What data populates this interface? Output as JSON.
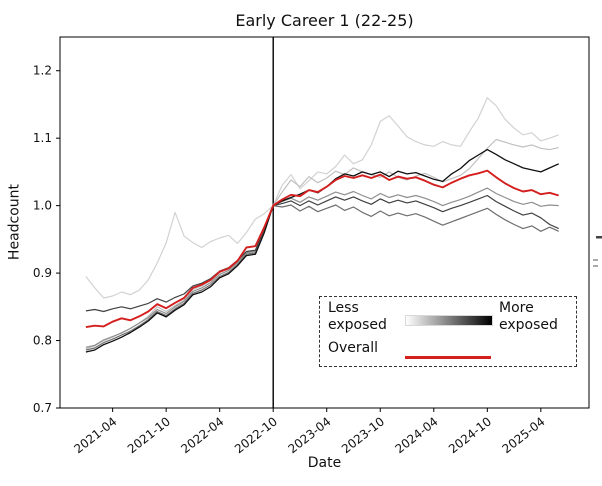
{
  "title": "Early Career 1 (22-25)",
  "axes": {
    "xlabel": "Date",
    "ylabel": "Headcount",
    "ytick_labels": [
      "0.7",
      "0.8",
      "0.9",
      "1.0",
      "1.1",
      "1.2"
    ],
    "xtick_labels": [
      "2021-04",
      "2021-10",
      "2022-04",
      "2022-10",
      "2023-04",
      "2023-10",
      "2024-04",
      "2024-10",
      "2025-04"
    ]
  },
  "legend": {
    "less_label": "Less exposed",
    "more_label": "More exposed",
    "overall_label": "Overall",
    "gradient_from": "#ffffff",
    "gradient_to": "#000000",
    "overall_color": "#d41f1f"
  },
  "chart_data": {
    "type": "line",
    "title": "Early Career 1 (22-25)",
    "xlabel": "Date",
    "ylabel": "Headcount",
    "ylim": [
      0.7,
      1.25
    ],
    "grid": false,
    "legend_position": "lower right",
    "normalization_note": "All series equal 1.0 at 2022-10, marked by a vertical black line",
    "vline": {
      "x": "2022-10",
      "color": "#000000"
    },
    "yticks": [
      0.7,
      0.8,
      0.9,
      1.0,
      1.1,
      1.2
    ],
    "xticks": [
      "2021-04",
      "2021-10",
      "2022-04",
      "2022-10",
      "2023-04",
      "2023-10",
      "2024-04",
      "2024-10",
      "2025-04"
    ],
    "x": [
      "2021-01",
      "2021-02",
      "2021-03",
      "2021-04",
      "2021-05",
      "2021-06",
      "2021-07",
      "2021-08",
      "2021-09",
      "2021-10",
      "2021-11",
      "2021-12",
      "2022-01",
      "2022-02",
      "2022-03",
      "2022-04",
      "2022-05",
      "2022-06",
      "2022-07",
      "2022-08",
      "2022-09",
      "2022-10",
      "2022-11",
      "2022-12",
      "2023-01",
      "2023-02",
      "2023-03",
      "2023-04",
      "2023-05",
      "2023-06",
      "2023-07",
      "2023-08",
      "2023-09",
      "2023-10",
      "2023-11",
      "2023-12",
      "2024-01",
      "2024-02",
      "2024-03",
      "2024-04",
      "2024-05",
      "2024-06",
      "2024-07",
      "2024-08",
      "2024-09",
      "2024-10",
      "2024-11",
      "2024-12",
      "2025-01",
      "2025-02",
      "2025-03",
      "2025-04",
      "2025-05",
      "2025-06"
    ],
    "series": [
      {
        "name": "exposure-group-1-least-exposed",
        "color": "#d2d2d2",
        "width": 1.2,
        "values": [
          0.895,
          0.878,
          0.863,
          0.866,
          0.872,
          0.868,
          0.875,
          0.89,
          0.915,
          0.945,
          0.99,
          0.955,
          0.945,
          0.938,
          0.947,
          0.952,
          0.956,
          0.944,
          0.96,
          0.98,
          0.988,
          1.0,
          1.03,
          1.046,
          1.025,
          1.037,
          1.05,
          1.047,
          1.058,
          1.075,
          1.062,
          1.068,
          1.09,
          1.125,
          1.133,
          1.118,
          1.102,
          1.095,
          1.09,
          1.088,
          1.095,
          1.09,
          1.088,
          1.11,
          1.13,
          1.16,
          1.148,
          1.128,
          1.115,
          1.105,
          1.108,
          1.096,
          1.1,
          1.105
        ]
      },
      {
        "name": "exposure-group-2",
        "color": "#c0c0c0",
        "width": 1.2,
        "values": [
          0.788,
          0.792,
          0.8,
          0.805,
          0.812,
          0.818,
          0.826,
          0.836,
          0.85,
          0.843,
          0.852,
          0.86,
          0.876,
          0.881,
          0.889,
          0.901,
          0.906,
          0.917,
          0.931,
          0.933,
          0.965,
          1.0,
          1.02,
          1.038,
          1.028,
          1.043,
          1.034,
          1.041,
          1.051,
          1.046,
          1.056,
          1.05,
          1.046,
          1.042,
          1.05,
          1.042,
          1.038,
          1.044,
          1.048,
          1.042,
          1.035,
          1.04,
          1.045,
          1.055,
          1.07,
          1.085,
          1.098,
          1.094,
          1.09,
          1.087,
          1.09,
          1.085,
          1.083,
          1.086
        ]
      },
      {
        "name": "exposure-group-3",
        "color": "#8f8f8f",
        "width": 1.2,
        "values": [
          0.79,
          0.793,
          0.801,
          0.806,
          0.811,
          0.818,
          0.826,
          0.834,
          0.846,
          0.84,
          0.85,
          0.858,
          0.873,
          0.878,
          0.886,
          0.898,
          0.904,
          0.916,
          0.93,
          0.932,
          0.964,
          1.0,
          1.006,
          1.011,
          1.005,
          1.013,
          1.008,
          1.014,
          1.02,
          1.016,
          1.021,
          1.015,
          1.01,
          1.018,
          1.012,
          1.016,
          1.012,
          1.015,
          1.011,
          1.006,
          1.0,
          1.005,
          1.009,
          1.014,
          1.02,
          1.026,
          1.018,
          1.012,
          1.006,
          1.002,
          1.005,
          0.999,
          1.001,
          1.0
        ]
      },
      {
        "name": "exposure-group-4",
        "color": "#6e6e6e",
        "width": 1.2,
        "values": [
          0.786,
          0.789,
          0.797,
          0.802,
          0.808,
          0.814,
          0.822,
          0.831,
          0.843,
          0.837,
          0.847,
          0.855,
          0.87,
          0.875,
          0.883,
          0.895,
          0.901,
          0.913,
          0.928,
          0.93,
          0.962,
          1.0,
          0.998,
          1.001,
          0.992,
          0.999,
          0.991,
          0.996,
          1.001,
          0.993,
          0.998,
          0.99,
          0.984,
          0.992,
          0.985,
          0.989,
          0.985,
          0.988,
          0.983,
          0.977,
          0.971,
          0.976,
          0.981,
          0.986,
          0.991,
          0.996,
          0.987,
          0.979,
          0.972,
          0.966,
          0.97,
          0.962,
          0.968,
          0.962
        ]
      },
      {
        "name": "exposure-group-5",
        "color": "#404040",
        "width": 1.2,
        "values": [
          0.844,
          0.846,
          0.843,
          0.847,
          0.85,
          0.847,
          0.851,
          0.855,
          0.862,
          0.857,
          0.864,
          0.869,
          0.881,
          0.885,
          0.892,
          0.903,
          0.908,
          0.919,
          0.932,
          0.934,
          0.966,
          1.0,
          1.003,
          1.007,
          1.0,
          1.007,
          1.001,
          1.007,
          1.013,
          1.008,
          1.013,
          1.007,
          1.002,
          1.01,
          1.004,
          1.008,
          1.004,
          1.007,
          1.002,
          0.997,
          0.991,
          0.996,
          1.0,
          1.005,
          1.01,
          1.015,
          1.006,
          0.999,
          0.992,
          0.986,
          0.989,
          0.982,
          0.972,
          0.966
        ]
      },
      {
        "name": "exposure-group-6-most-exposed",
        "color": "#0f0f0f",
        "width": 1.3,
        "values": [
          0.783,
          0.786,
          0.794,
          0.799,
          0.805,
          0.812,
          0.82,
          0.829,
          0.841,
          0.835,
          0.845,
          0.853,
          0.868,
          0.872,
          0.88,
          0.893,
          0.899,
          0.911,
          0.926,
          0.928,
          0.96,
          1.0,
          1.007,
          1.012,
          1.017,
          1.023,
          1.019,
          1.028,
          1.04,
          1.047,
          1.044,
          1.05,
          1.046,
          1.05,
          1.043,
          1.051,
          1.047,
          1.049,
          1.044,
          1.039,
          1.036,
          1.047,
          1.055,
          1.067,
          1.075,
          1.083,
          1.076,
          1.068,
          1.062,
          1.056,
          1.053,
          1.05,
          1.056,
          1.062
        ]
      },
      {
        "name": "overall",
        "color": "#d41f1f",
        "width": 1.9,
        "values": [
          0.82,
          0.822,
          0.821,
          0.828,
          0.833,
          0.83,
          0.836,
          0.843,
          0.854,
          0.848,
          0.856,
          0.863,
          0.878,
          0.883,
          0.89,
          0.902,
          0.907,
          0.918,
          0.938,
          0.94,
          0.968,
          1.0,
          1.009,
          1.016,
          1.014,
          1.023,
          1.02,
          1.028,
          1.038,
          1.044,
          1.041,
          1.045,
          1.041,
          1.046,
          1.038,
          1.043,
          1.04,
          1.042,
          1.037,
          1.031,
          1.027,
          1.034,
          1.04,
          1.045,
          1.048,
          1.052,
          1.042,
          1.033,
          1.026,
          1.021,
          1.023,
          1.017,
          1.019,
          1.015
        ]
      }
    ]
  }
}
